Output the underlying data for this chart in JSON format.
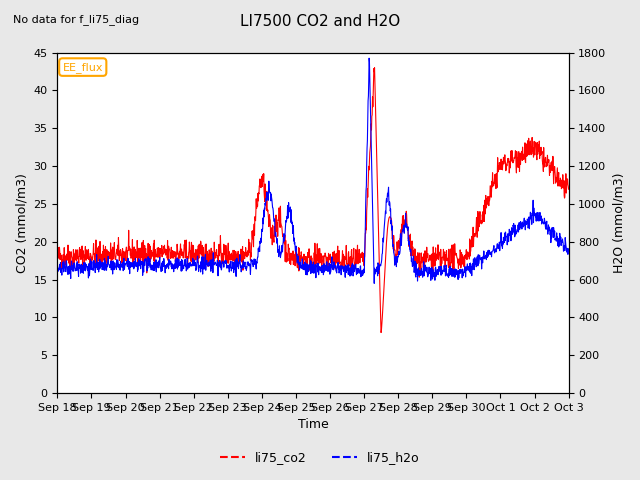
{
  "title": "LI7500 CO2 and H2O",
  "subtitle": "No data for f_li75_diag",
  "xlabel": "Time",
  "ylabel_left": "CO2 (mmol/m3)",
  "ylabel_right": "H2O (mmol/m3)",
  "ylim_left": [
    0,
    45
  ],
  "ylim_right": [
    0,
    1800
  ],
  "yticks_left": [
    0,
    5,
    10,
    15,
    20,
    25,
    30,
    35,
    40,
    45
  ],
  "yticks_right": [
    0,
    200,
    400,
    600,
    800,
    1000,
    1200,
    1400,
    1600,
    1800
  ],
  "x_tick_labels": [
    "Sep 18",
    "Sep 19",
    "Sep 20",
    "Sep 21",
    "Sep 22",
    "Sep 23",
    "Sep 24",
    "Sep 25",
    "Sep 26",
    "Sep 27",
    "Sep 28",
    "Sep 29",
    "Sep 30",
    "Oct 1",
    "Oct 2",
    "Oct 3"
  ],
  "legend_label_co2": "li75_co2",
  "legend_label_h2o": "li75_h2o",
  "color_co2": "#ff0000",
  "color_h2o": "#0000ff",
  "annotation_text": "EE_flux",
  "background_color": "#e8e8e8",
  "plot_bg_color": "#ffffff",
  "grid_color": "#ffffff",
  "n_points": 1500,
  "seed": 42
}
